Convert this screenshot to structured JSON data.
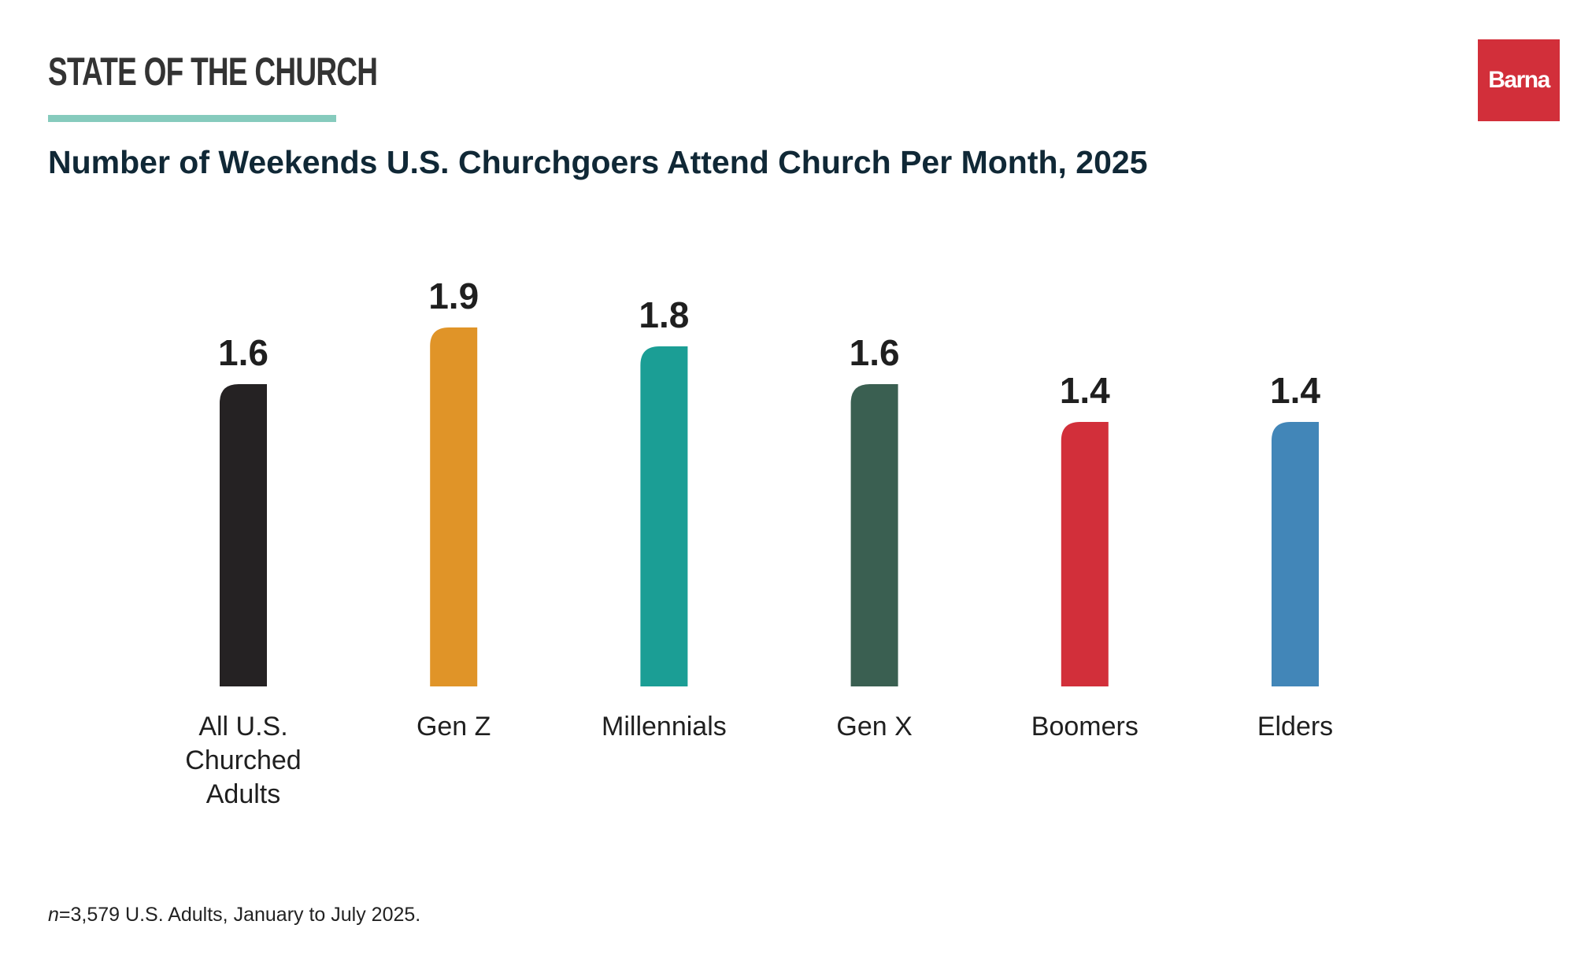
{
  "header": {
    "kicker": "STATE OF THE CHURCH",
    "logo_text": "Barna",
    "title": "Number of Weekends U.S. Churchgoers Attend Church Per Month, 2025"
  },
  "footnote": {
    "n_symbol": "n",
    "text": "=3,579 U.S. Adults, January to July 2025."
  },
  "colors": {
    "kicker_rule": "#86cbbd",
    "logo_bg": "#d22f3a",
    "title": "#102836"
  },
  "chart_data": {
    "type": "bar",
    "title": "Number of Weekends U.S. Churchgoers Attend Church Per Month, 2025",
    "xlabel": "",
    "ylabel": "",
    "ylim": [
      0,
      2.0
    ],
    "grid": false,
    "categories": [
      [
        "All U.S.",
        "Churched",
        "Adults"
      ],
      [
        "Gen Z"
      ],
      [
        "Millennials"
      ],
      [
        "Gen X"
      ],
      [
        "Boomers"
      ],
      [
        "Elders"
      ]
    ],
    "values": [
      1.6,
      1.9,
      1.8,
      1.6,
      1.4,
      1.4
    ],
    "value_labels": [
      "1.6",
      "1.9",
      "1.8",
      "1.6",
      "1.4",
      "1.4"
    ],
    "bar_colors": [
      "#252223",
      "#e09428",
      "#1b9e95",
      "#3a5f51",
      "#d22f3a",
      "#4286b8"
    ]
  }
}
